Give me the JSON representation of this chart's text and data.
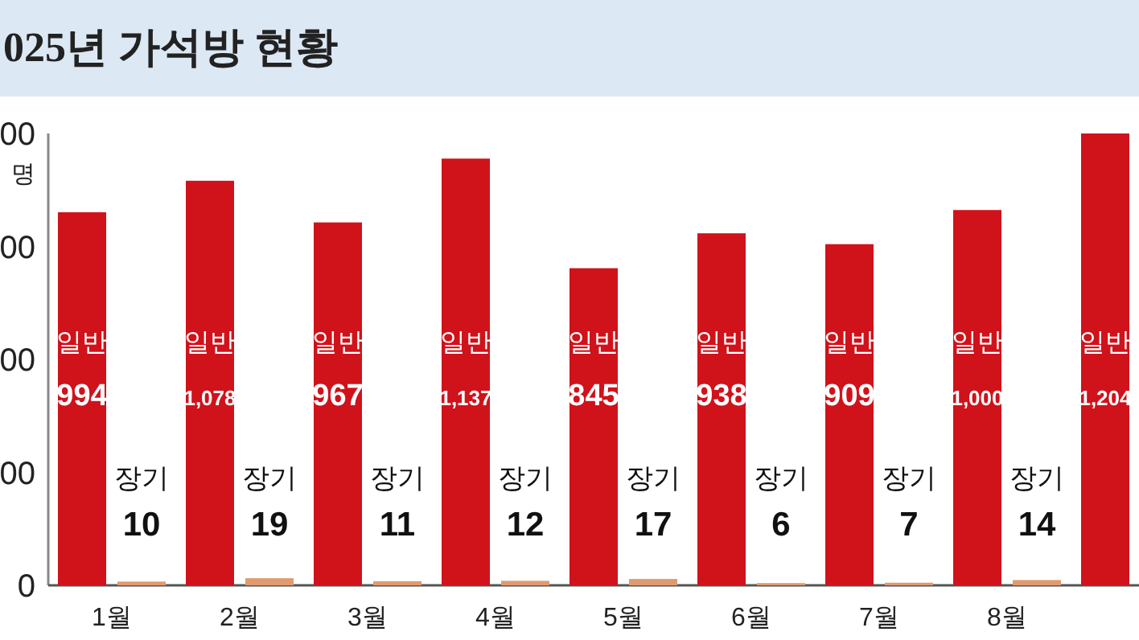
{
  "chart_data": {
    "type": "bar",
    "title": "025년 가석방 현황",
    "categories": [
      "1월",
      "2월",
      "3월",
      "4월",
      "5월",
      "6월",
      "7월",
      "8월",
      null
    ],
    "annotations": [
      "00",
      "00",
      "00",
      "00",
      "0",
      "명"
    ],
    "series": [
      {
        "name": "일반",
        "color": "#d0121b",
        "values": [
          994,
          1078,
          967,
          1137,
          845,
          938,
          909,
          1000,
          1204
        ],
        "value_labels": [
          "994",
          "1,078",
          "967",
          "1,137",
          "845",
          "938",
          "909",
          "1,000",
          "1,204"
        ]
      },
      {
        "name": "장기",
        "color": "#e09a70",
        "values": [
          10,
          19,
          11,
          12,
          17,
          6,
          7,
          14,
          null
        ],
        "value_labels": [
          "10",
          "19",
          "11",
          "12",
          "17",
          "6",
          "7",
          "14",
          null
        ]
      }
    ]
  }
}
